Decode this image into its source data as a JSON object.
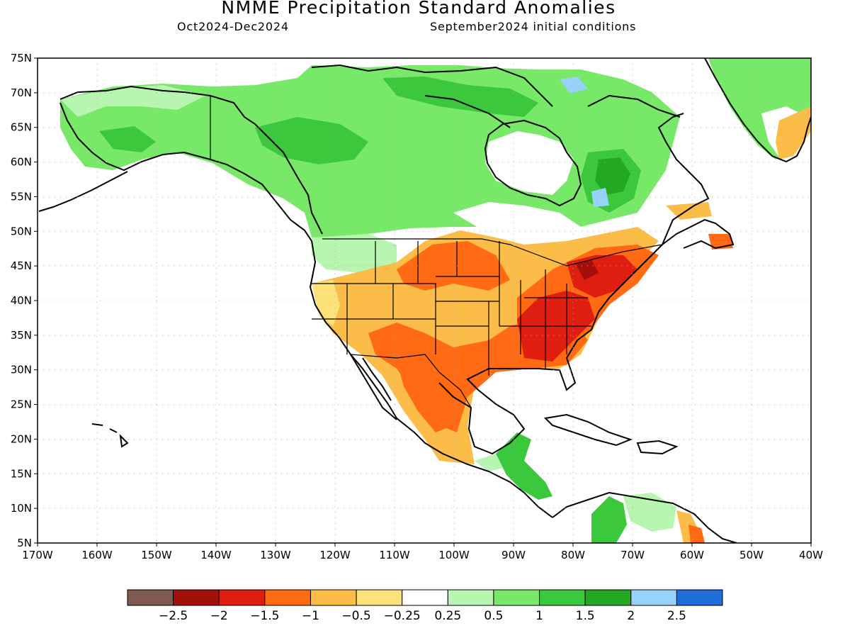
{
  "header": {
    "title": "NMME Precipitation Standard Anomalies",
    "period": "Oct2024-Dec2024",
    "init": "September2024 initial conditions"
  },
  "axes": {
    "lat_labels": [
      "75N",
      "70N",
      "65N",
      "60N",
      "55N",
      "50N",
      "45N",
      "40N",
      "35N",
      "30N",
      "25N",
      "20N",
      "15N",
      "10N",
      "5N"
    ],
    "lon_labels": [
      "170W",
      "160W",
      "150W",
      "140W",
      "130W",
      "120W",
      "110W",
      "100W",
      "90W",
      "80W",
      "70W",
      "60W",
      "50W",
      "40W"
    ],
    "lat_range": [
      5,
      75
    ],
    "lon_range": [
      -170,
      -40
    ],
    "grid": "dotted"
  },
  "colorbar": {
    "colors": [
      "#7f5a50",
      "#a30f0a",
      "#e01e10",
      "#ff6a12",
      "#fbbd48",
      "#fde27a",
      "#ffffff",
      "#b7f5b0",
      "#78e868",
      "#3cc83c",
      "#22a822",
      "#96d2fa",
      "#1e6ed8"
    ],
    "labels": [
      "-2.5",
      "-2",
      "-1.5",
      "-1",
      "-0.5",
      "-0.25",
      "0.25",
      "0.5",
      "1",
      "1.5",
      "2",
      "2.5"
    ]
  },
  "map": {
    "anomaly_regions": [
      {
        "name": "canada-wet",
        "category": "0.5"
      },
      {
        "name": "canada-wet-core",
        "category": "1"
      },
      {
        "name": "great-lakes-dry",
        "category": "-2"
      },
      {
        "name": "southeast-dry",
        "category": "-2"
      },
      {
        "name": "plains-dry",
        "category": "-1"
      },
      {
        "name": "southwest-dry",
        "category": "-0.5"
      },
      {
        "name": "mexico-dry",
        "category": "-1"
      },
      {
        "name": "central-america-wet",
        "category": "1"
      },
      {
        "name": "greenland-wet",
        "category": "0.5"
      },
      {
        "name": "quebec-wet",
        "category": "1.5"
      }
    ]
  }
}
